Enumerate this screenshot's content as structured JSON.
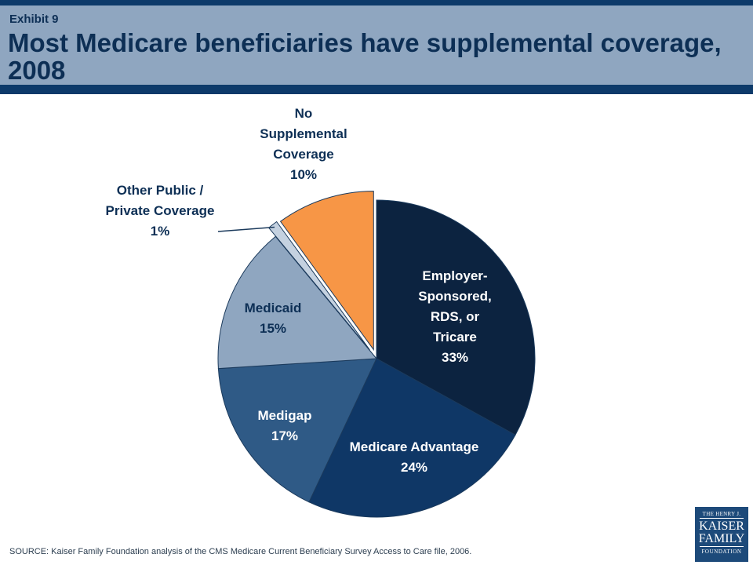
{
  "header": {
    "exhibit": "Exhibit 9",
    "title": "Most Medicare beneficiaries have supplemental coverage, 2008"
  },
  "chart_data": {
    "type": "pie",
    "title": "Most Medicare beneficiaries have supplemental coverage, 2008",
    "slices": [
      {
        "label": [
          "Employer-",
          "Sponsored,",
          "RDS, or",
          "Tricare"
        ],
        "value": 33,
        "value_label": "33%",
        "color": "#0c2340",
        "label_color": "#ffffff",
        "exploded": false
      },
      {
        "label": [
          "Medicare Advantage"
        ],
        "value": 24,
        "value_label": "24%",
        "color": "#0f3766",
        "label_color": "#ffffff",
        "exploded": false
      },
      {
        "label": [
          "Medigap"
        ],
        "value": 17,
        "value_label": "17%",
        "color": "#2f5a86",
        "label_color": "#ffffff",
        "exploded": false
      },
      {
        "label": [
          "Medicaid"
        ],
        "value": 15,
        "value_label": "15%",
        "color": "#8fa6c0",
        "label_color": "#0d2f55",
        "exploded": false
      },
      {
        "label": [
          "Other Public /",
          "Private Coverage"
        ],
        "value": 1,
        "value_label": "1%",
        "color": "#c4d1e0",
        "label_color": "#0d2f55",
        "exploded": true
      },
      {
        "label": [
          "No",
          "Supplemental",
          "Coverage"
        ],
        "value": 10,
        "value_label": "10%",
        "color": "#f79646",
        "label_color": "#0d2f55",
        "exploded": true
      }
    ]
  },
  "source": "SOURCE:  Kaiser Family Foundation analysis of the CMS Medicare Current Beneficiary Survey Access to Care file, 2006.",
  "logo": {
    "line1": "THE HENRY J.",
    "line2": "KAISER",
    "line3": "FAMILY",
    "line4": "FOUNDATION"
  }
}
